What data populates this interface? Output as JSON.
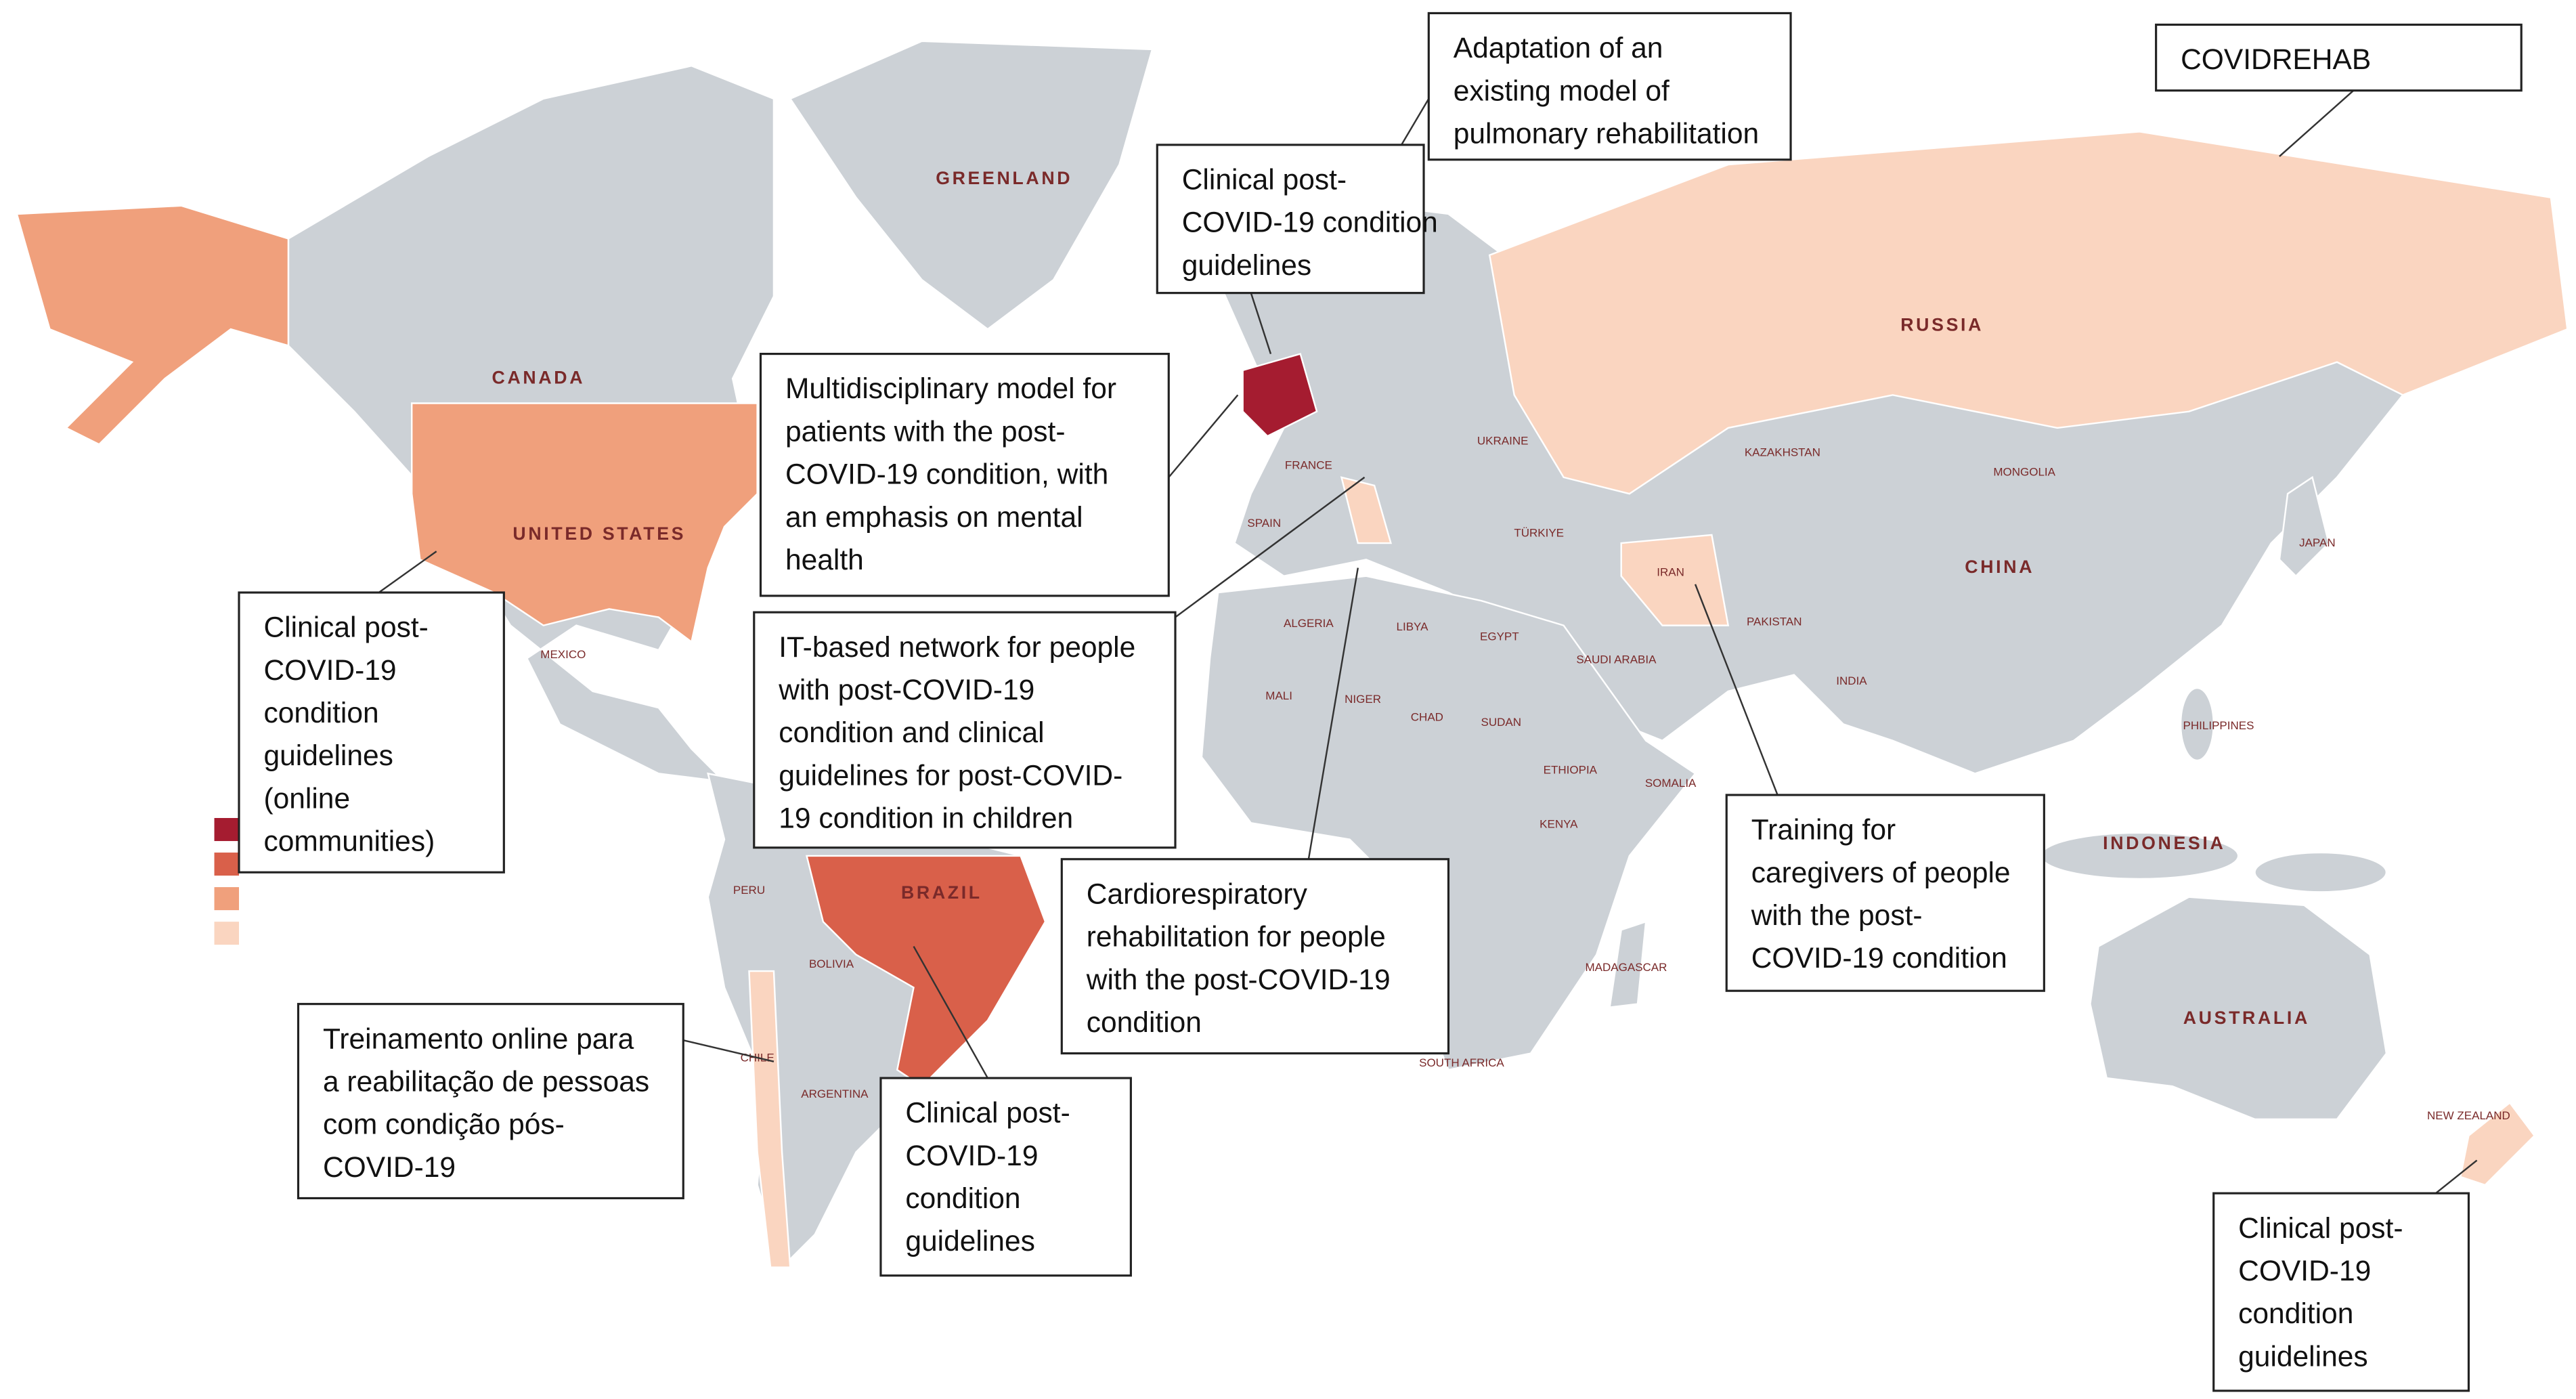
{
  "country_labels": [
    "GREENLAND",
    "CANADA",
    "UNITED STATES",
    "MEXICO",
    "BRAZIL",
    "PERU",
    "BOLIVIA",
    "CHILE",
    "ARGENTINA",
    "RUSSIA",
    "KAZAKHSTAN",
    "MONGOLIA",
    "CHINA",
    "IRAN",
    "PAKISTAN",
    "INDIA",
    "JAPAN",
    "PHILIPPINES",
    "INDONESIA",
    "AUSTRALIA",
    "NEW ZEALAND",
    "FRANCE",
    "SPAIN",
    "UKRAINE",
    "TÜRKIYE",
    "SAUDI ARABIA",
    "ALGERIA",
    "LIBYA",
    "EGYPT",
    "MALI",
    "NIGER",
    "CHAD",
    "SUDAN",
    "ETHIOPIA",
    "SOMALIA",
    "KENYA",
    "MADAGASCAR",
    "SOUTH AFRICA"
  ],
  "annotations": [
    {
      "lines": [
        "Adaptation of an",
        "existing model of",
        "pulmonary rehabilitation"
      ]
    },
    {
      "lines": [
        "COVIDREHAB"
      ]
    },
    {
      "lines": [
        "Clinical post-",
        "COVID-19 condition",
        "guidelines"
      ]
    },
    {
      "lines": [
        "Multidisciplinary model for",
        "patients with the post-",
        "COVID-19 condition, with",
        "an emphasis on mental",
        "health"
      ]
    },
    {
      "lines": [
        "Clinical post-",
        "COVID-19",
        "condition",
        "guidelines",
        "(online",
        "communities)"
      ]
    },
    {
      "lines": [
        "IT-based network for people",
        "with post-COVID-19",
        "condition and clinical",
        "guidelines for post-COVID-",
        "19 condition in children"
      ]
    },
    {
      "lines": [
        "Cardiorespiratory",
        "rehabilitation for people",
        "with the post-COVID-19",
        "condition"
      ]
    },
    {
      "lines": [
        "Training for",
        "caregivers of people",
        "with the post-",
        "COVID-19 condition"
      ]
    },
    {
      "lines": [
        "Treinamento online para",
        "a reabilitação de pessoas",
        "com condição pós-",
        "COVID-19"
      ]
    },
    {
      "lines": [
        "Clinical post-",
        "COVID-19",
        "condition",
        "guidelines"
      ]
    },
    {
      "lines": [
        "Clinical post-",
        "COVID-19",
        "condition",
        "guidelines"
      ]
    }
  ]
}
